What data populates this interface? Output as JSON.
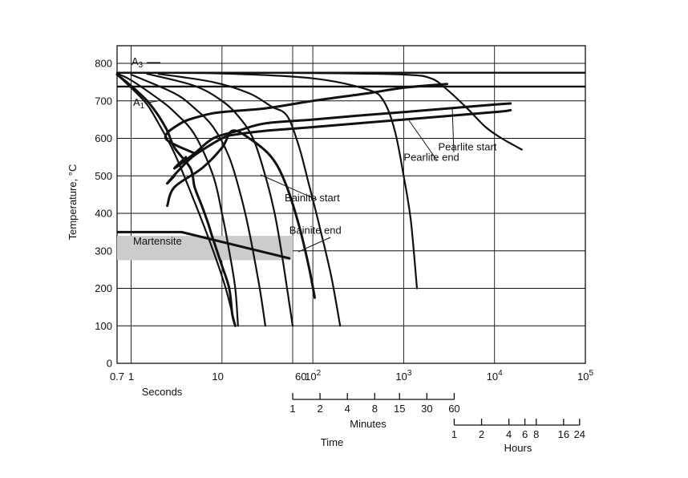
{
  "chart_data": {
    "type": "line",
    "title": "",
    "xlabel": "Time",
    "x_units_label": "Seconds",
    "ylabel": "Temperature, °C",
    "x_scale": "log",
    "xlim": [
      0.7,
      100000
    ],
    "ylim": [
      0,
      850
    ],
    "x_ticks": [
      {
        "value": 0.7,
        "label": "0.7"
      },
      {
        "value": 1,
        "label": "1"
      },
      {
        "value": 10,
        "label": "10"
      },
      {
        "value": 60,
        "label": "60"
      },
      {
        "value": 100,
        "label": "10",
        "exp": "2"
      },
      {
        "value": 1000,
        "label": "10",
        "exp": "3"
      },
      {
        "value": 10000,
        "label": "10",
        "exp": "4"
      },
      {
        "value": 100000,
        "label": "10",
        "exp": "5"
      }
    ],
    "y_ticks": [
      0,
      100,
      200,
      300,
      400,
      500,
      600,
      700,
      800
    ],
    "grid": true,
    "minutes_scale": {
      "label": "Minutes",
      "ticks": [
        {
          "value": 60,
          "label": "1"
        },
        {
          "value": 120,
          "label": "2"
        },
        {
          "value": 240,
          "label": "4"
        },
        {
          "value": 480,
          "label": "8"
        },
        {
          "value": 900,
          "label": "15"
        },
        {
          "value": 1800,
          "label": "30"
        },
        {
          "value": 3600,
          "label": "60"
        }
      ]
    },
    "hours_scale": {
      "label": "Hours",
      "ticks": [
        {
          "value": 3600,
          "label": "1"
        },
        {
          "value": 7200,
          "label": "2"
        },
        {
          "value": 14400,
          "label": "4"
        },
        {
          "value": 21600,
          "label": "6"
        },
        {
          "value": 28800,
          "label": "8"
        },
        {
          "value": 57600,
          "label": "16"
        },
        {
          "value": 86400,
          "label": "24"
        }
      ]
    },
    "reference_lines": [
      {
        "name": "A3",
        "sub": "3",
        "base": "A",
        "y": 775
      },
      {
        "name": "A1",
        "sub": "1",
        "base": "A",
        "y": 738
      }
    ],
    "martensite": {
      "label": "Martensite",
      "band": [
        275,
        340
      ],
      "line_y": 350,
      "line_x": [
        0.7,
        3.6
      ]
    },
    "cooling_curves": [
      {
        "points": [
          [
            0.7,
            770
          ],
          [
            1,
            735
          ],
          [
            1.5,
            690
          ],
          [
            2,
            640
          ],
          [
            3,
            560
          ],
          [
            5,
            430
          ],
          [
            8,
            300
          ],
          [
            11,
            200
          ],
          [
            14,
            100
          ]
        ]
      },
      {
        "points": [
          [
            0.7,
            773
          ],
          [
            1,
            755
          ],
          [
            2,
            705
          ],
          [
            3,
            670
          ],
          [
            5,
            610
          ],
          [
            8,
            500
          ],
          [
            10,
            400
          ],
          [
            12,
            300
          ],
          [
            14,
            200
          ],
          [
            15,
            100
          ]
        ]
      },
      {
        "points": [
          [
            1,
            770
          ],
          [
            3,
            720
          ],
          [
            5,
            680
          ],
          [
            8,
            630
          ],
          [
            12,
            550
          ],
          [
            16,
            450
          ],
          [
            20,
            350
          ],
          [
            26,
            200
          ],
          [
            30,
            100
          ]
        ]
      },
      {
        "points": [
          [
            1.5,
            772
          ],
          [
            5,
            740
          ],
          [
            10,
            700
          ],
          [
            15,
            660
          ],
          [
            22,
            600
          ],
          [
            30,
            500
          ],
          [
            38,
            400
          ],
          [
            45,
            300
          ],
          [
            52,
            200
          ],
          [
            60,
            100
          ]
        ]
      },
      {
        "points": [
          [
            2,
            772
          ],
          [
            8,
            750
          ],
          [
            20,
            720
          ],
          [
            35,
            685
          ],
          [
            52,
            660
          ],
          [
            70,
            580
          ],
          [
            90,
            480
          ],
          [
            120,
            360
          ],
          [
            160,
            230
          ],
          [
            200,
            100
          ]
        ]
      },
      {
        "points": [
          [
            0.7,
            775
          ],
          [
            10,
            773
          ],
          [
            100,
            760
          ],
          [
            400,
            730
          ],
          [
            600,
            700
          ],
          [
            800,
            620
          ],
          [
            1000,
            500
          ],
          [
            1200,
            380
          ],
          [
            1400,
            200
          ]
        ]
      },
      {
        "points": [
          [
            0.7,
            775
          ],
          [
            10,
            775
          ],
          [
            100,
            774
          ],
          [
            1000,
            770
          ],
          [
            2000,
            760
          ],
          [
            3000,
            730
          ],
          [
            5000,
            680
          ],
          [
            8000,
            630
          ],
          [
            12000,
            600
          ],
          [
            20000,
            570
          ]
        ]
      }
    ],
    "transformation_curves": [
      {
        "points": [
          [
            0.7,
            770
          ],
          [
            1,
            740
          ],
          [
            1.5,
            700
          ],
          [
            2,
            660
          ],
          [
            2.5,
            620
          ],
          [
            3,
            575
          ],
          [
            4.5,
            520
          ],
          [
            5,
            470
          ],
          [
            6,
            420
          ],
          [
            7,
            375
          ],
          [
            8,
            330
          ],
          [
            10,
            260
          ],
          [
            12,
            200
          ],
          [
            13,
            130
          ],
          [
            14,
            100
          ]
        ]
      },
      {
        "points": [
          [
            5,
            560
          ],
          [
            2.4,
            600
          ],
          [
            3.5,
            640
          ],
          [
            6,
            660
          ],
          [
            10,
            670
          ],
          [
            30,
            680
          ],
          [
            100,
            700
          ],
          [
            400,
            720
          ],
          [
            1000,
            735
          ],
          [
            3000,
            745
          ]
        ]
      },
      {
        "points": [
          [
            4,
            550
          ],
          [
            3,
            520
          ],
          [
            5,
            560
          ],
          [
            8,
            600
          ],
          [
            15,
            620
          ],
          [
            30,
            640
          ],
          [
            100,
            650
          ],
          [
            300,
            660
          ],
          [
            1000,
            670
          ],
          [
            10000,
            690
          ],
          [
            15000,
            693
          ]
        ]
      },
      {
        "points": [
          [
            3,
            500
          ],
          [
            2.5,
            480
          ],
          [
            3.5,
            520
          ],
          [
            5,
            555
          ],
          [
            10,
            600
          ],
          [
            14,
            610
          ],
          [
            30,
            620
          ],
          [
            100,
            630
          ],
          [
            1000,
            650
          ],
          [
            10000,
            670
          ],
          [
            15000,
            675
          ]
        ]
      },
      {
        "points": [
          [
            2.5,
            420
          ],
          [
            3,
            470
          ],
          [
            6,
            520
          ],
          [
            10,
            575
          ],
          [
            13,
            620
          ],
          [
            20,
            600
          ],
          [
            35,
            550
          ],
          [
            50,
            480
          ],
          [
            70,
            370
          ],
          [
            90,
            260
          ],
          [
            105,
            175
          ]
        ]
      }
    ],
    "annotations": [
      {
        "text": "Bainite start",
        "at": [
          49,
          432
        ]
      },
      {
        "text": "Bainite end",
        "at": [
          55,
          345
        ]
      },
      {
        "text": "Pearlite start",
        "at": [
          2400,
          568
        ]
      },
      {
        "text": "Pearlite end",
        "at": [
          1000,
          540
        ]
      }
    ]
  }
}
